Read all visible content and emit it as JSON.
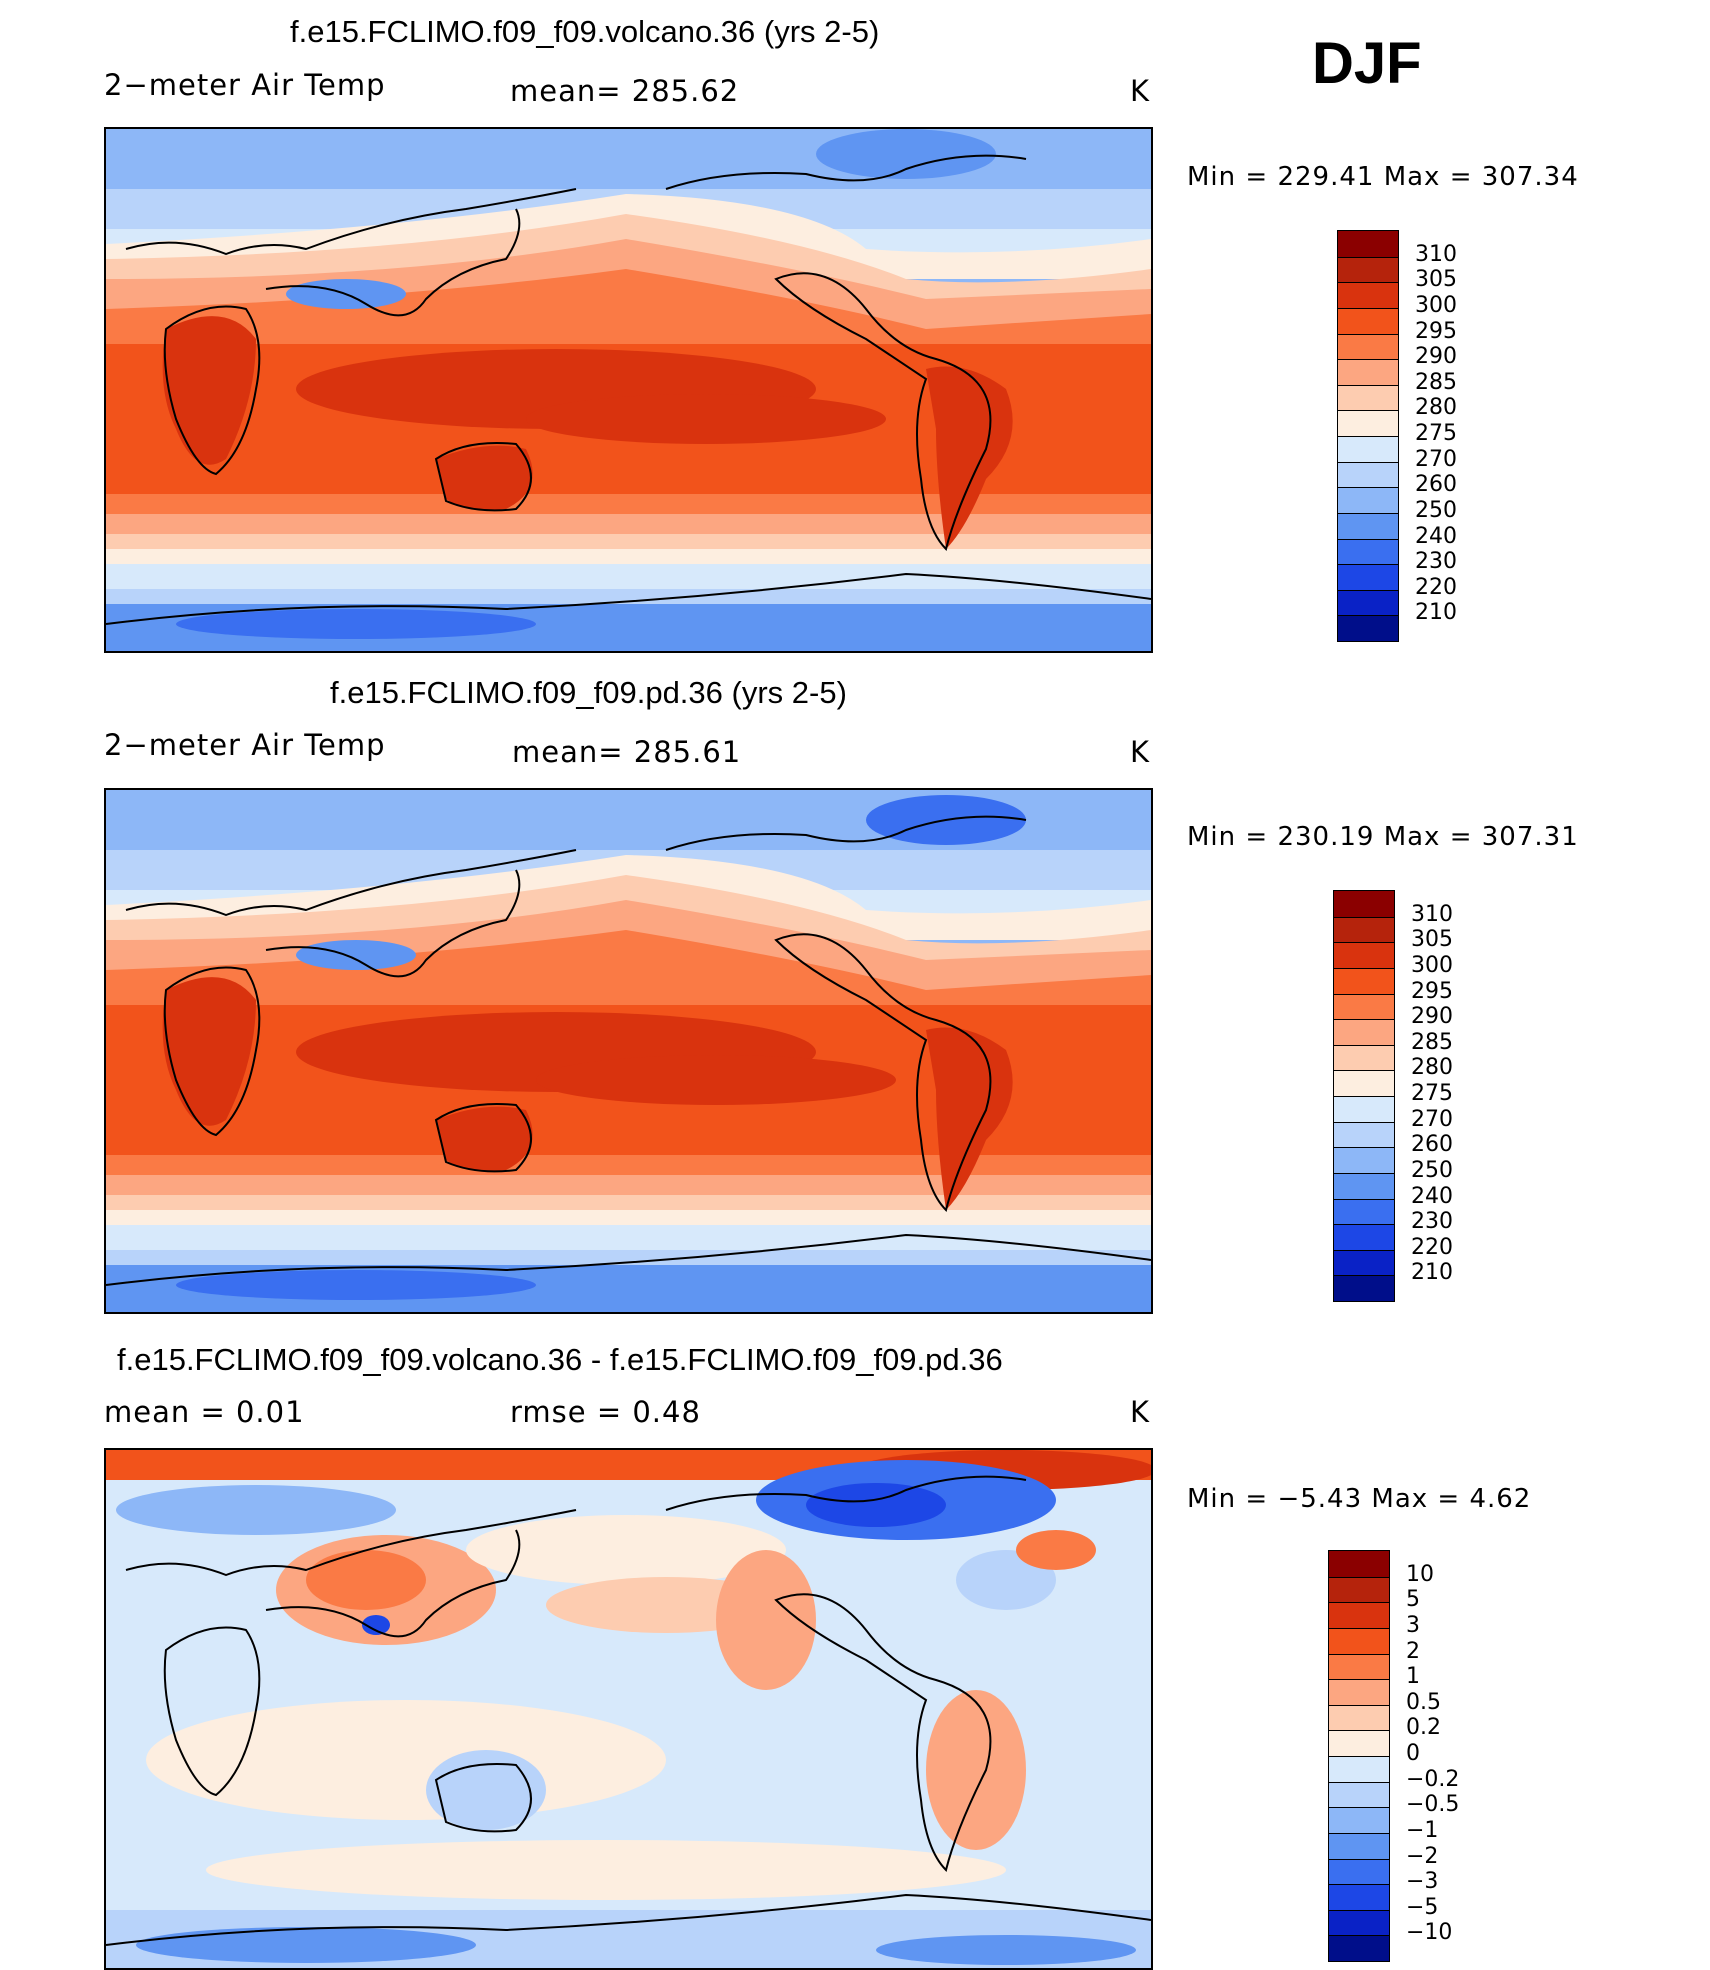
{
  "season": "DJF",
  "panels": [
    {
      "title": "f.e15.FCLIMO.f09_f09.volcano.36 (yrs 2-5)",
      "variable": "2−meter Air Temp",
      "stat": "mean=  285.62",
      "units": "K",
      "minmax": "Min  =  229.41  Max  =  307.34",
      "colorbar_labels": [
        "310",
        "305",
        "300",
        "295",
        "290",
        "285",
        "280",
        "275",
        "270",
        "260",
        "250",
        "240",
        "230",
        "220",
        "210"
      ],
      "colorbar_colors": [
        "#8b0000",
        "#b5230c",
        "#d9330e",
        "#f2531b",
        "#fa7a45",
        "#fca681",
        "#fdccb0",
        "#fdeee0",
        "#d7e9fb",
        "#b8d3fa",
        "#8db7f7",
        "#5f95f2",
        "#3a6ff0",
        "#1d47e6",
        "#0a22c6",
        "#000e8a"
      ]
    },
    {
      "title": "f.e15.FCLIMO.f09_f09.pd.36 (yrs 2-5)",
      "variable": "2−meter Air Temp",
      "stat": "mean=  285.61",
      "units": "K",
      "minmax": "Min  =  230.19  Max  =  307.31",
      "colorbar_labels": [
        "310",
        "305",
        "300",
        "295",
        "290",
        "285",
        "280",
        "275",
        "270",
        "260",
        "250",
        "240",
        "230",
        "220",
        "210"
      ],
      "colorbar_colors": [
        "#8b0000",
        "#b5230c",
        "#d9330e",
        "#f2531b",
        "#fa7a45",
        "#fca681",
        "#fdccb0",
        "#fdeee0",
        "#d7e9fb",
        "#b8d3fa",
        "#8db7f7",
        "#5f95f2",
        "#3a6ff0",
        "#1d47e6",
        "#0a22c6",
        "#000e8a"
      ]
    },
    {
      "title": "f.e15.FCLIMO.f09_f09.volcano.36 - f.e15.FCLIMO.f09_f09.pd.36",
      "variable": "mean  =     0.01",
      "stat": "rmse  =     0.48",
      "units": "K",
      "minmax": "Min  =    −5.43  Max  =      4.62",
      "colorbar_labels": [
        "10",
        "5",
        "3",
        "2",
        "1",
        "0.5",
        "0.2",
        "0",
        "−0.2",
        "−0.5",
        "−1",
        "−2",
        "−3",
        "−5",
        "−10"
      ],
      "colorbar_colors": [
        "#8b0000",
        "#b5230c",
        "#d9330e",
        "#f2531b",
        "#fa7a45",
        "#fca681",
        "#fdccb0",
        "#fdeee0",
        "#d7e9fb",
        "#b8d3fa",
        "#8db7f7",
        "#5f95f2",
        "#3a6ff0",
        "#1d47e6",
        "#0a22c6",
        "#000e8a"
      ]
    }
  ]
}
